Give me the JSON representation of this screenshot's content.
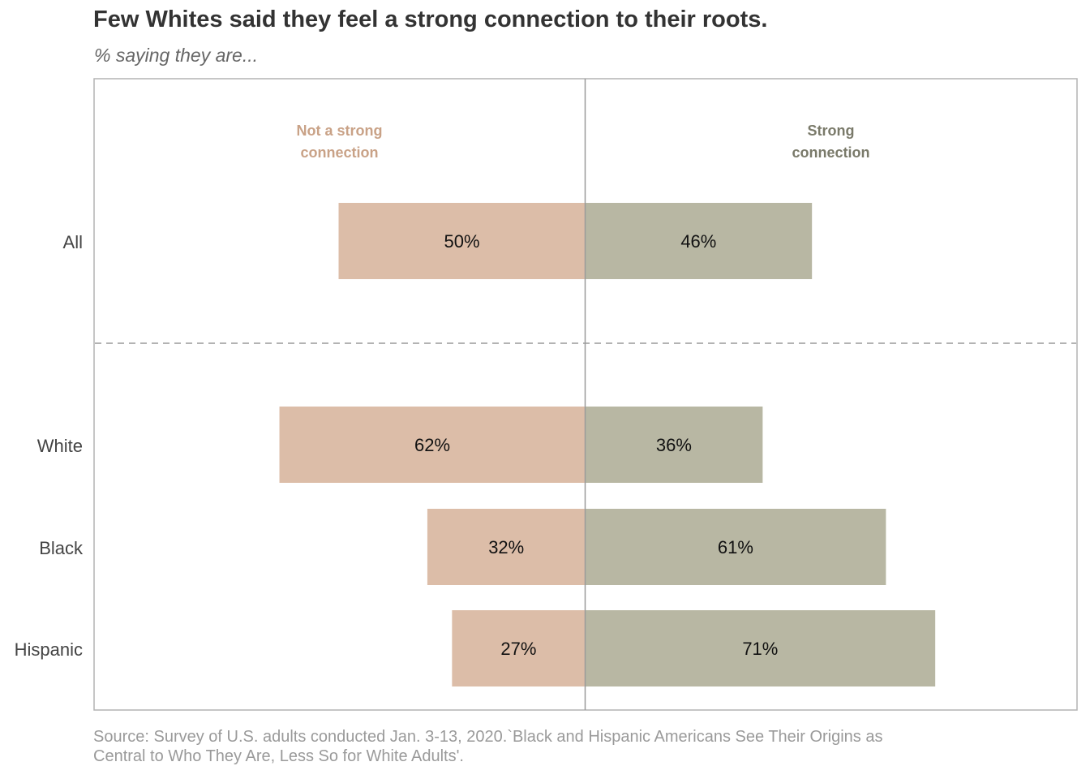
{
  "chart_data": {
    "type": "bar",
    "orientation": "horizontal-diverging",
    "title": "Few Whites said they feel a strong connection to their roots.",
    "subtitle": "% saying they are...",
    "categories": [
      "All",
      "White",
      "Black",
      "Hispanic"
    ],
    "series": [
      {
        "name": "Not a strong connection",
        "name_lines": [
          "Not a strong",
          "connection"
        ],
        "direction": "left",
        "color": "#dcbda8",
        "label_color": "#c9a287",
        "values": [
          50,
          62,
          32,
          27
        ]
      },
      {
        "name": "Strong connection",
        "name_lines": [
          "Strong",
          "connection"
        ],
        "direction": "right",
        "color": "#b8b7a3",
        "label_color": "#7a7a6a",
        "values": [
          46,
          36,
          61,
          71
        ]
      }
    ],
    "value_suffix": "%",
    "separator_after_category": "All",
    "source": "Source: Survey of U.S. adults conducted Jan. 3-13, 2020.`Black and Hispanic Americans See Their Origins as Central to Who They Are, Less So for White Adults'."
  }
}
